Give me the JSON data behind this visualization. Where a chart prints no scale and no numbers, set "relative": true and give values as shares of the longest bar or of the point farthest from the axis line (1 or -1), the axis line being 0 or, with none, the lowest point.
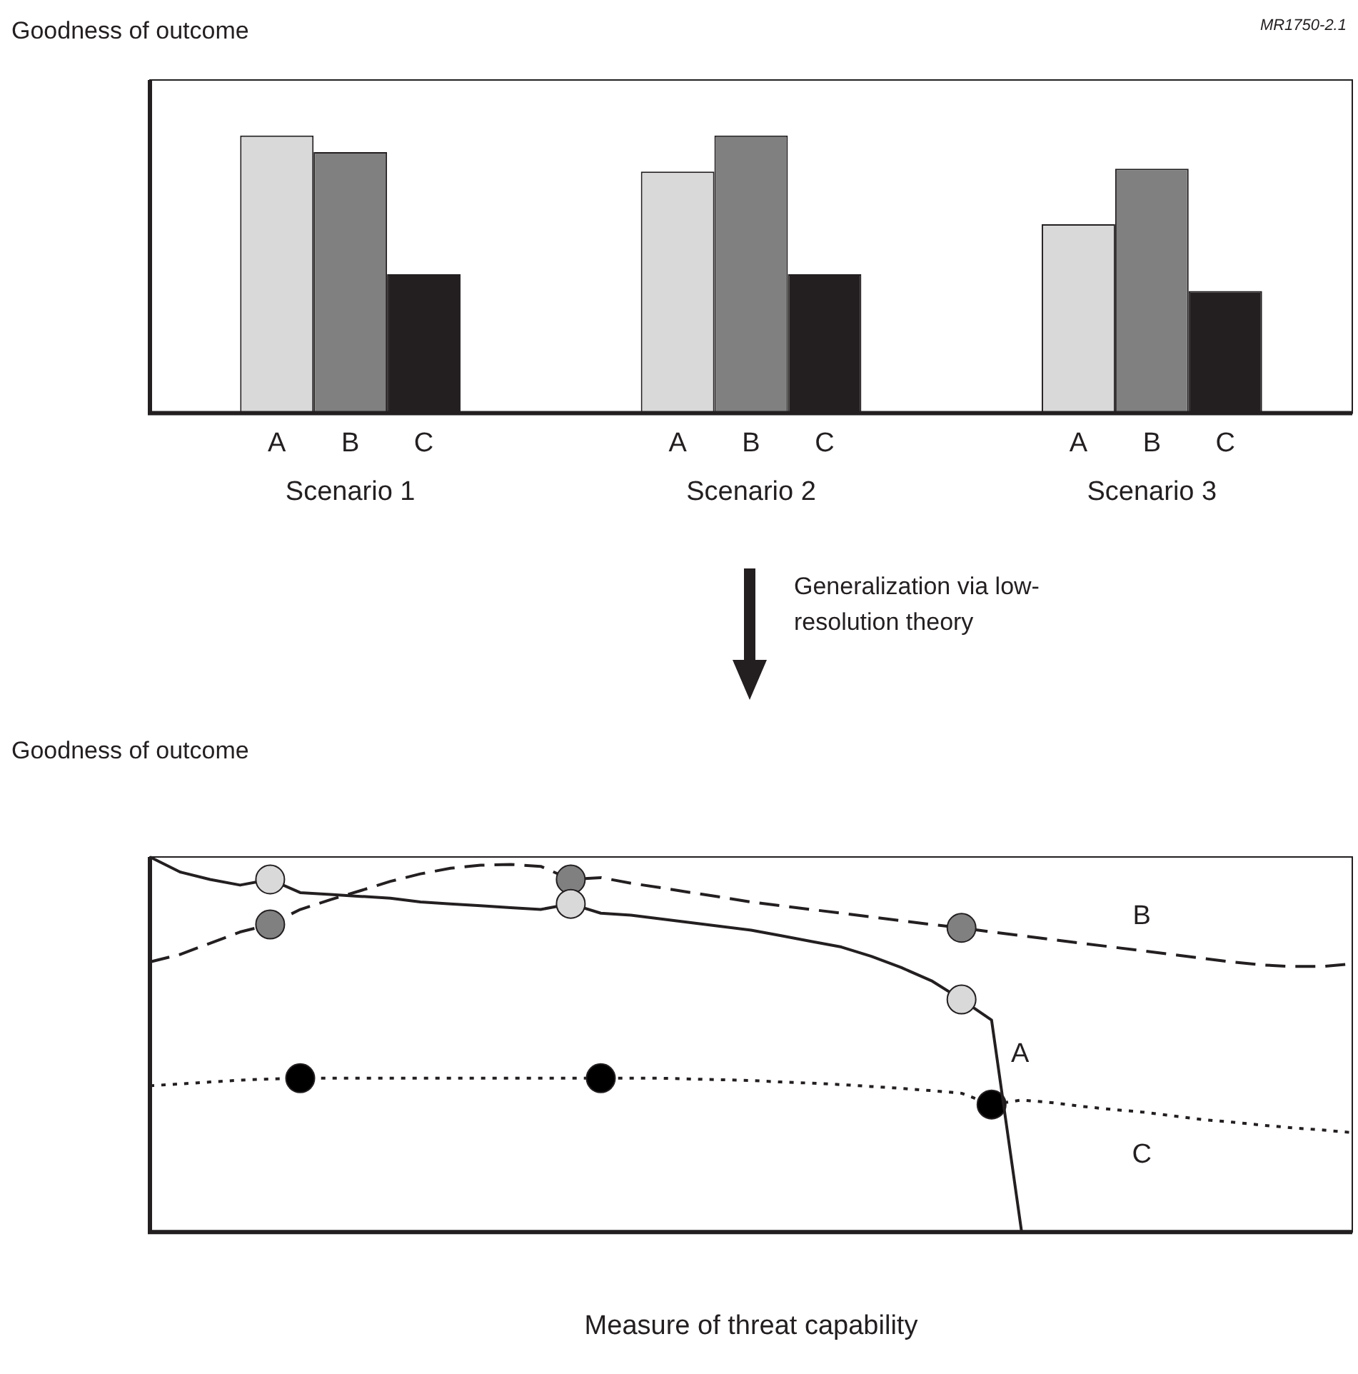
{
  "chart_data": [
    {
      "type": "bar",
      "relative": true,
      "ylabel": "Goodness of outcome",
      "annotations": [
        "MR1750-2.1"
      ],
      "categories": [
        "Scenario 1",
        "Scenario 2",
        "Scenario 3"
      ],
      "legend": false,
      "grid": false,
      "series": [
        {
          "name": "A",
          "color": "#d9d9d9",
          "values": [
            1,
            0.87,
            0.68
          ]
        },
        {
          "name": "B",
          "color": "#808080",
          "values": [
            0.94,
            1,
            0.88
          ]
        },
        {
          "name": "C",
          "color": "#231f20",
          "values": [
            0.5,
            0.5,
            0.44
          ]
        }
      ]
    },
    {
      "type": "line",
      "relative": true,
      "ylabel": "Goodness of outcome",
      "xlabel": "Measure of threat capability",
      "annotations": [
        "Generalization via low-resolution theory"
      ],
      "legend": false,
      "grid": false,
      "categories": [
        null,
        null,
        null,
        null,
        null,
        null,
        null,
        null,
        null,
        null,
        null,
        null,
        null,
        null,
        null,
        null,
        null,
        null,
        null,
        null,
        null,
        null,
        null,
        null,
        null,
        null,
        null,
        null,
        null,
        null,
        null,
        null,
        null,
        null,
        null,
        null,
        null,
        null,
        null,
        null,
        null
      ],
      "series": [
        {
          "name": "A",
          "color": "#231f20",
          "line_style": "solid",
          "values": [
            1,
            0.96,
            0.94,
            0.925,
            0.94,
            0.905,
            0.9,
            0.895,
            0.89,
            0.88,
            0.875,
            0.87,
            0.865,
            0.86,
            0.875,
            0.85,
            0.845,
            0.835,
            0.825,
            0.815,
            0.805,
            0.79,
            0.775,
            0.76,
            0.735,
            0.705,
            0.67,
            0.62,
            0.565,
            0,
            null,
            null,
            null,
            null,
            null,
            null,
            null,
            null,
            null,
            null,
            null
          ],
          "colors": [
            null,
            null,
            null,
            null,
            "#d9d9d9",
            null,
            null,
            null,
            null,
            null,
            null,
            null,
            null,
            null,
            "#d9d9d9",
            null,
            null,
            null,
            null,
            null,
            null,
            null,
            null,
            null,
            null,
            null,
            null,
            "#d9d9d9",
            null,
            null,
            null,
            null,
            null,
            null,
            null,
            null,
            null,
            null,
            null,
            null,
            null
          ]
        },
        {
          "name": "B",
          "color": "#231f20",
          "line_style": "dashed",
          "values": [
            0.72,
            0.74,
            0.77,
            0.8,
            0.82,
            0.86,
            0.886,
            0.91,
            0.935,
            0.955,
            0.97,
            0.978,
            0.98,
            0.975,
            0.94,
            0.945,
            0.93,
            0.918,
            0.905,
            0.893,
            0.88,
            0.87,
            0.86,
            0.85,
            0.84,
            0.83,
            0.82,
            0.811,
            0.8,
            0.79,
            0.78,
            0.77,
            0.76,
            0.75,
            0.74,
            0.73,
            0.72,
            0.712,
            0.708,
            0.708,
            0.715
          ],
          "colors": [
            null,
            null,
            null,
            null,
            "#808080",
            null,
            null,
            null,
            null,
            null,
            null,
            null,
            null,
            null,
            "#808080",
            null,
            null,
            null,
            null,
            null,
            null,
            null,
            null,
            null,
            null,
            null,
            null,
            "#808080",
            null,
            null,
            null,
            null,
            null,
            null,
            null,
            null,
            null,
            null,
            null,
            null,
            null
          ]
        },
        {
          "name": "C",
          "color": "#231f20",
          "line_style": "dotted",
          "values": [
            0.39,
            0.395,
            0.4,
            0.405,
            0.408,
            0.41,
            0.41,
            0.41,
            0.41,
            0.41,
            0.41,
            0.41,
            0.41,
            0.41,
            0.41,
            0.41,
            0.41,
            0.41,
            0.408,
            0.406,
            0.404,
            0.4,
            0.397,
            0.393,
            0.388,
            0.383,
            0.377,
            0.37,
            0.34,
            0.352,
            0.345,
            0.335,
            0.327,
            0.32,
            0.31,
            0.3,
            0.293,
            0.285,
            0.278,
            0.272,
            0.265
          ],
          "colors": [
            null,
            null,
            null,
            null,
            null,
            "#000000",
            null,
            null,
            null,
            null,
            null,
            null,
            null,
            null,
            null,
            "#000000",
            null,
            null,
            null,
            null,
            null,
            null,
            null,
            null,
            null,
            null,
            null,
            null,
            "#000000",
            null,
            null,
            null,
            null,
            null,
            null,
            null,
            null,
            null,
            null,
            null,
            null
          ]
        }
      ]
    }
  ]
}
